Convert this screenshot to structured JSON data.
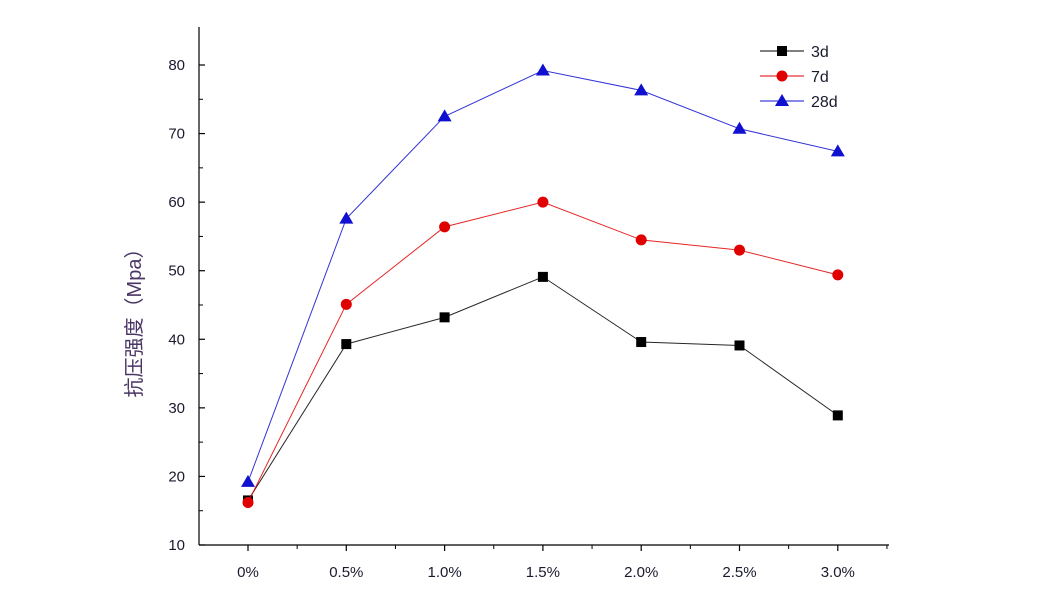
{
  "chart_data": {
    "type": "line",
    "categories": [
      "0%",
      "0.5%",
      "1.0%",
      "1.5%",
      "2.0%",
      "2.5%",
      "3.0%"
    ],
    "ylabel": "抗压强度（Mpa）",
    "xlabel": "",
    "ylim": [
      10,
      85
    ],
    "yticks": [
      10,
      20,
      30,
      40,
      50,
      60,
      70,
      80
    ],
    "legend_position": "top-right",
    "series": [
      {
        "name": "3d",
        "values": [
          16.5,
          39.3,
          43.2,
          49.1,
          39.6,
          39.1,
          28.9
        ],
        "color": "#000000",
        "marker": "square"
      },
      {
        "name": "7d",
        "values": [
          16.2,
          45.1,
          56.4,
          60.0,
          54.5,
          53.0,
          49.4
        ],
        "color": "#e00000",
        "marker": "circle"
      },
      {
        "name": "28d",
        "values": [
          19.2,
          57.6,
          72.5,
          79.2,
          76.3,
          70.7,
          67.4
        ],
        "color": "#1010d0",
        "marker": "triangle"
      }
    ]
  }
}
